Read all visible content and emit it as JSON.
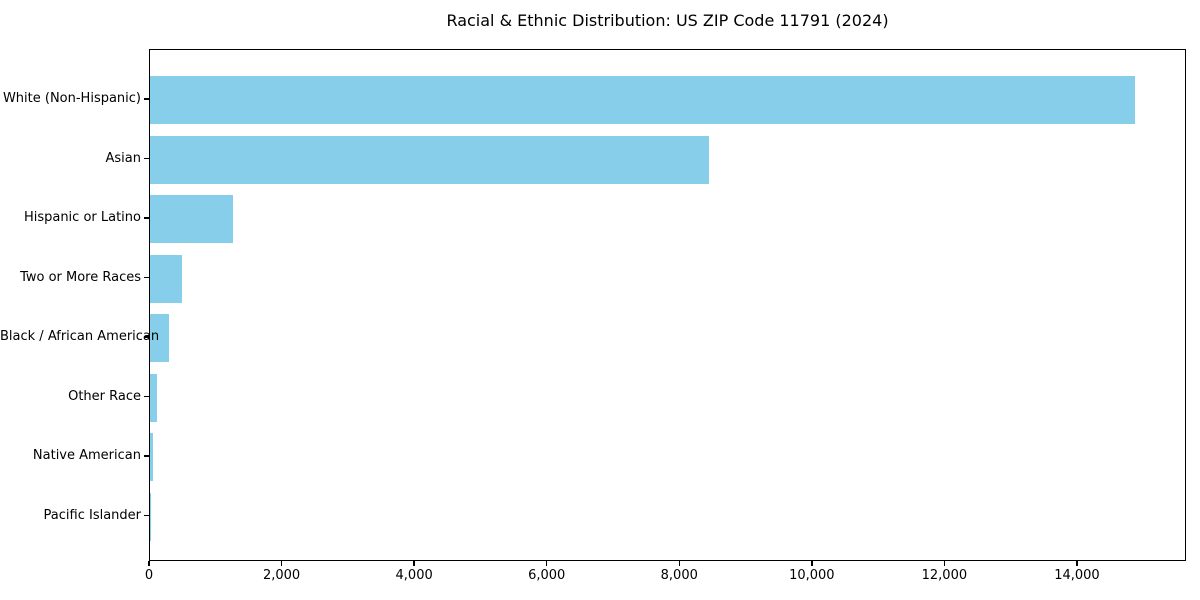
{
  "chart_data": {
    "type": "bar",
    "orientation": "horizontal",
    "title": "Racial & Ethnic Distribution: US ZIP Code 11791 (2024)",
    "categories": [
      "White (Non-Hispanic)",
      "Asian",
      "Hispanic or Latino",
      "Two or More Races",
      "Black / African American",
      "Other Race",
      "Native American",
      "Pacific Islander"
    ],
    "values": [
      14860,
      8430,
      1250,
      480,
      290,
      110,
      50,
      5
    ],
    "xlabel": "",
    "ylabel": "",
    "xlim": [
      0,
      15600
    ],
    "xticks": [
      0,
      2000,
      4000,
      6000,
      8000,
      10000,
      12000,
      14000
    ],
    "xtick_labels": [
      "0",
      "2,000",
      "4,000",
      "6,000",
      "8,000",
      "10,000",
      "12,000",
      "14,000"
    ],
    "bar_color": "#87CEEB",
    "axis_color": "#000000",
    "background_color": "#FFFFFF",
    "grid": false,
    "legend": "none"
  }
}
